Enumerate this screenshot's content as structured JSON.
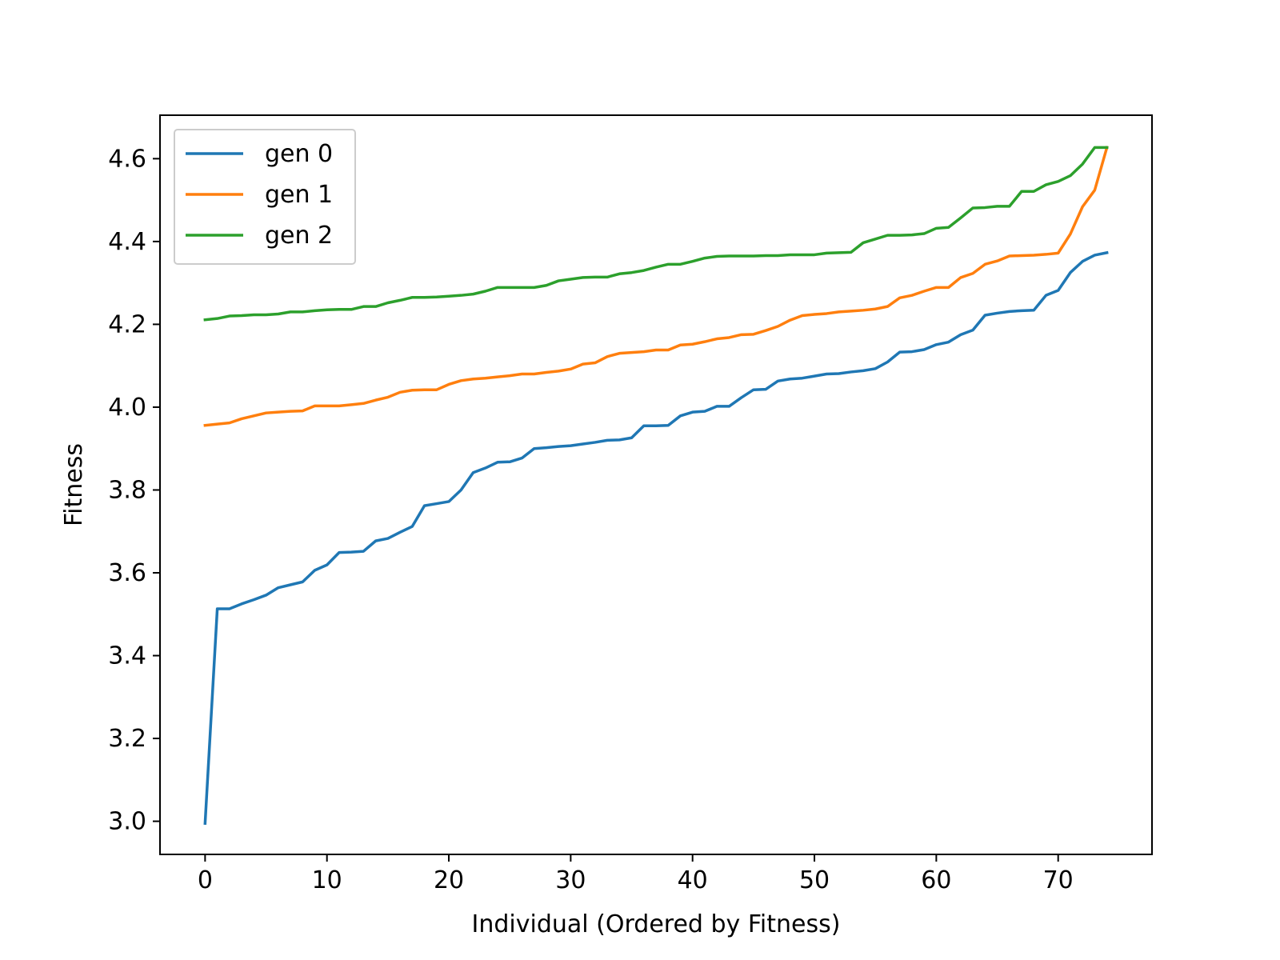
{
  "chart_data": {
    "type": "line",
    "title": "",
    "xlabel": "Individual (Ordered by Fitness)",
    "ylabel": "Fitness",
    "xlim": [
      -3.7,
      77.7
    ],
    "ylim": [
      2.92,
      4.705
    ],
    "xticks": [
      0,
      10,
      20,
      30,
      40,
      50,
      60,
      70
    ],
    "xtick_labels": [
      "0",
      "10",
      "20",
      "30",
      "40",
      "50",
      "60",
      "70"
    ],
    "yticks": [
      3.0,
      3.2,
      3.4,
      3.6,
      3.8,
      4.0,
      4.2,
      4.4,
      4.6
    ],
    "ytick_labels": [
      "3.0",
      "3.2",
      "3.4",
      "3.6",
      "3.8",
      "4.0",
      "4.2",
      "4.4",
      "4.6"
    ],
    "grid": false,
    "legend_position": "top-left",
    "x": [
      0,
      1,
      2,
      3,
      4,
      5,
      6,
      7,
      8,
      9,
      10,
      11,
      12,
      13,
      14,
      15,
      16,
      17,
      18,
      19,
      20,
      21,
      22,
      23,
      24,
      25,
      26,
      27,
      28,
      29,
      30,
      31,
      32,
      33,
      34,
      35,
      36,
      37,
      38,
      39,
      40,
      41,
      42,
      43,
      44,
      45,
      46,
      47,
      48,
      49,
      50,
      51,
      52,
      53,
      54,
      55,
      56,
      57,
      58,
      59,
      60,
      61,
      62,
      63,
      64,
      65,
      66,
      67,
      68,
      69,
      70,
      71,
      72,
      73,
      74
    ],
    "series": [
      {
        "name": "gen 0",
        "color": "#1f77b4",
        "values": [
          2.995,
          3.513,
          3.513,
          3.525,
          3.535,
          3.546,
          3.564,
          3.571,
          3.578,
          3.606,
          3.619,
          3.649,
          3.65,
          3.652,
          3.677,
          3.683,
          3.698,
          3.712,
          3.762,
          3.767,
          3.772,
          3.8,
          3.842,
          3.853,
          3.867,
          3.868,
          3.877,
          3.9,
          3.902,
          3.905,
          3.907,
          3.911,
          3.915,
          3.92,
          3.921,
          3.926,
          3.955,
          3.955,
          3.956,
          3.979,
          3.988,
          3.99,
          4.002,
          4.002,
          4.023,
          4.042,
          4.043,
          4.063,
          4.068,
          4.07,
          4.075,
          4.08,
          4.081,
          4.085,
          4.088,
          4.093,
          4.109,
          4.133,
          4.134,
          4.139,
          4.151,
          4.157,
          4.175,
          4.186,
          4.222,
          4.227,
          4.231,
          4.233,
          4.234,
          4.27,
          4.282,
          4.325,
          4.352,
          4.367,
          4.373
        ]
      },
      {
        "name": "gen 1",
        "color": "#ff7f0e",
        "values": [
          3.956,
          3.959,
          3.962,
          3.972,
          3.979,
          3.986,
          3.988,
          3.99,
          3.991,
          4.003,
          4.003,
          4.003,
          4.006,
          4.009,
          4.017,
          4.024,
          4.036,
          4.041,
          4.042,
          4.042,
          4.055,
          4.064,
          4.068,
          4.07,
          4.073,
          4.076,
          4.08,
          4.08,
          4.084,
          4.087,
          4.092,
          4.104,
          4.107,
          4.122,
          4.13,
          4.132,
          4.134,
          4.138,
          4.138,
          4.15,
          4.152,
          4.158,
          4.165,
          4.168,
          4.175,
          4.176,
          4.185,
          4.195,
          4.21,
          4.221,
          4.224,
          4.226,
          4.23,
          4.232,
          4.234,
          4.237,
          4.243,
          4.264,
          4.27,
          4.28,
          4.289,
          4.289,
          4.313,
          4.323,
          4.345,
          4.353,
          4.365,
          4.366,
          4.367,
          4.369,
          4.372,
          4.418,
          4.484,
          4.524,
          4.627
        ]
      },
      {
        "name": "gen 2",
        "color": "#2ca02c",
        "values": [
          4.211,
          4.214,
          4.22,
          4.221,
          4.223,
          4.223,
          4.225,
          4.23,
          4.23,
          4.233,
          4.235,
          4.236,
          4.236,
          4.243,
          4.243,
          4.252,
          4.258,
          4.265,
          4.265,
          4.266,
          4.268,
          4.27,
          4.273,
          4.28,
          4.289,
          4.289,
          4.289,
          4.289,
          4.294,
          4.305,
          4.309,
          4.313,
          4.314,
          4.314,
          4.322,
          4.325,
          4.33,
          4.338,
          4.345,
          4.345,
          4.352,
          4.36,
          4.364,
          4.365,
          4.365,
          4.365,
          4.366,
          4.366,
          4.368,
          4.368,
          4.368,
          4.372,
          4.373,
          4.374,
          4.397,
          4.406,
          4.415,
          4.415,
          4.416,
          4.419,
          4.432,
          4.434,
          4.457,
          4.481,
          4.482,
          4.485,
          4.485,
          4.521,
          4.521,
          4.537,
          4.545,
          4.559,
          4.587,
          4.627,
          4.627
        ]
      }
    ]
  }
}
